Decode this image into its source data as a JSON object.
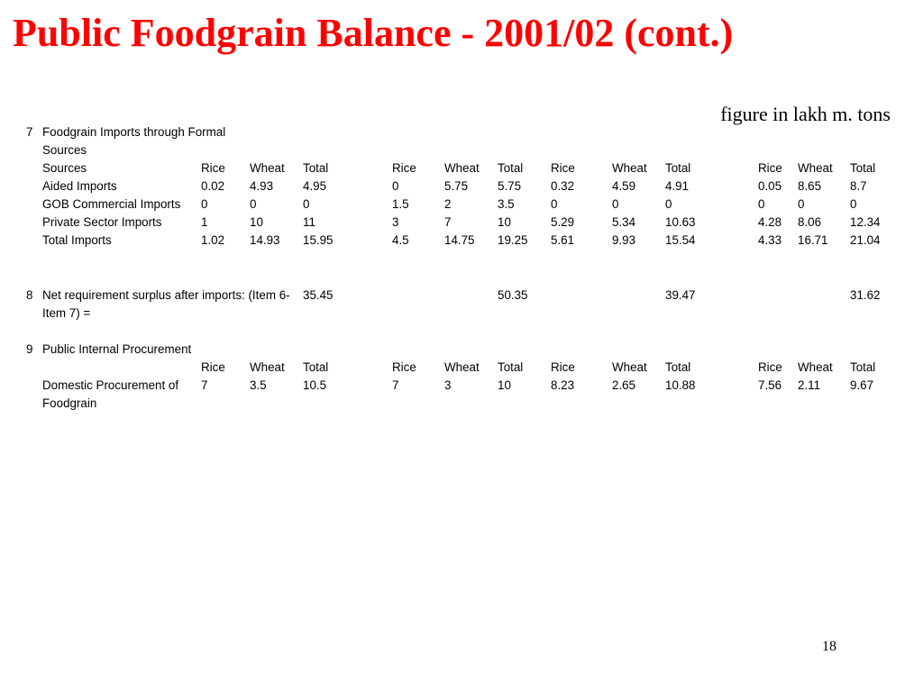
{
  "slide": {
    "title": "Public Foodgrain Balance - 2001/02 (cont.)",
    "unit_note": "figure in lakh m. tons",
    "page_number": "18"
  },
  "section7": {
    "number": "7",
    "heading": "Foodgrain Imports through Formal Sources",
    "col_header_label": "Sources",
    "col_headers": [
      "Rice",
      "Wheat",
      "Total",
      "Rice",
      "Wheat",
      "Total",
      "Rice",
      "Wheat",
      "Total",
      "Rice",
      "Wheat",
      "Total"
    ],
    "rows": [
      {
        "label": "Aided Imports",
        "values": [
          "0.02",
          "4.93",
          "4.95",
          "0",
          "5.75",
          "5.75",
          "0.32",
          "4.59",
          "4.91",
          "0.05",
          "8.65",
          "8.7"
        ]
      },
      {
        "label": "GOB Commercial Imports",
        "values": [
          "0",
          "0",
          "0",
          "1.5",
          "2",
          "3.5",
          "0",
          "0",
          "0",
          "0",
          "0",
          "0"
        ]
      },
      {
        "label": "Private Sector Imports",
        "values": [
          "1",
          "10",
          "11",
          "3",
          "7",
          "10",
          "5.29",
          "5.34",
          "10.63",
          "4.28",
          "8.06",
          "12.34"
        ]
      },
      {
        "label": "Total Imports",
        "values": [
          "1.02",
          "14.93",
          "15.95",
          "4.5",
          "14.75",
          "19.25",
          "5.61",
          "9.93",
          "15.54",
          "4.33",
          "16.71",
          "21.04"
        ]
      }
    ]
  },
  "section8": {
    "number": "8",
    "label": "Net requirement surplus after imports: (Item 6-Item 7) =",
    "totals": [
      "35.45",
      "50.35",
      "39.47",
      "31.62"
    ]
  },
  "section9": {
    "number": "9",
    "heading": "Public Internal Procurement",
    "col_headers": [
      "Rice",
      "Wheat",
      "Total",
      "Rice",
      "Wheat",
      "Total",
      "Rice",
      "Wheat",
      "Total",
      "Rice",
      "Wheat",
      "Total"
    ],
    "rows": [
      {
        "label": "Domestic Procurement of Foodgrain",
        "values": [
          "7",
          "3.5",
          "10.5",
          "7",
          "3",
          "10",
          "8.23",
          "2.65",
          "10.88",
          "7.56",
          "2.11",
          "9.67"
        ]
      }
    ]
  }
}
